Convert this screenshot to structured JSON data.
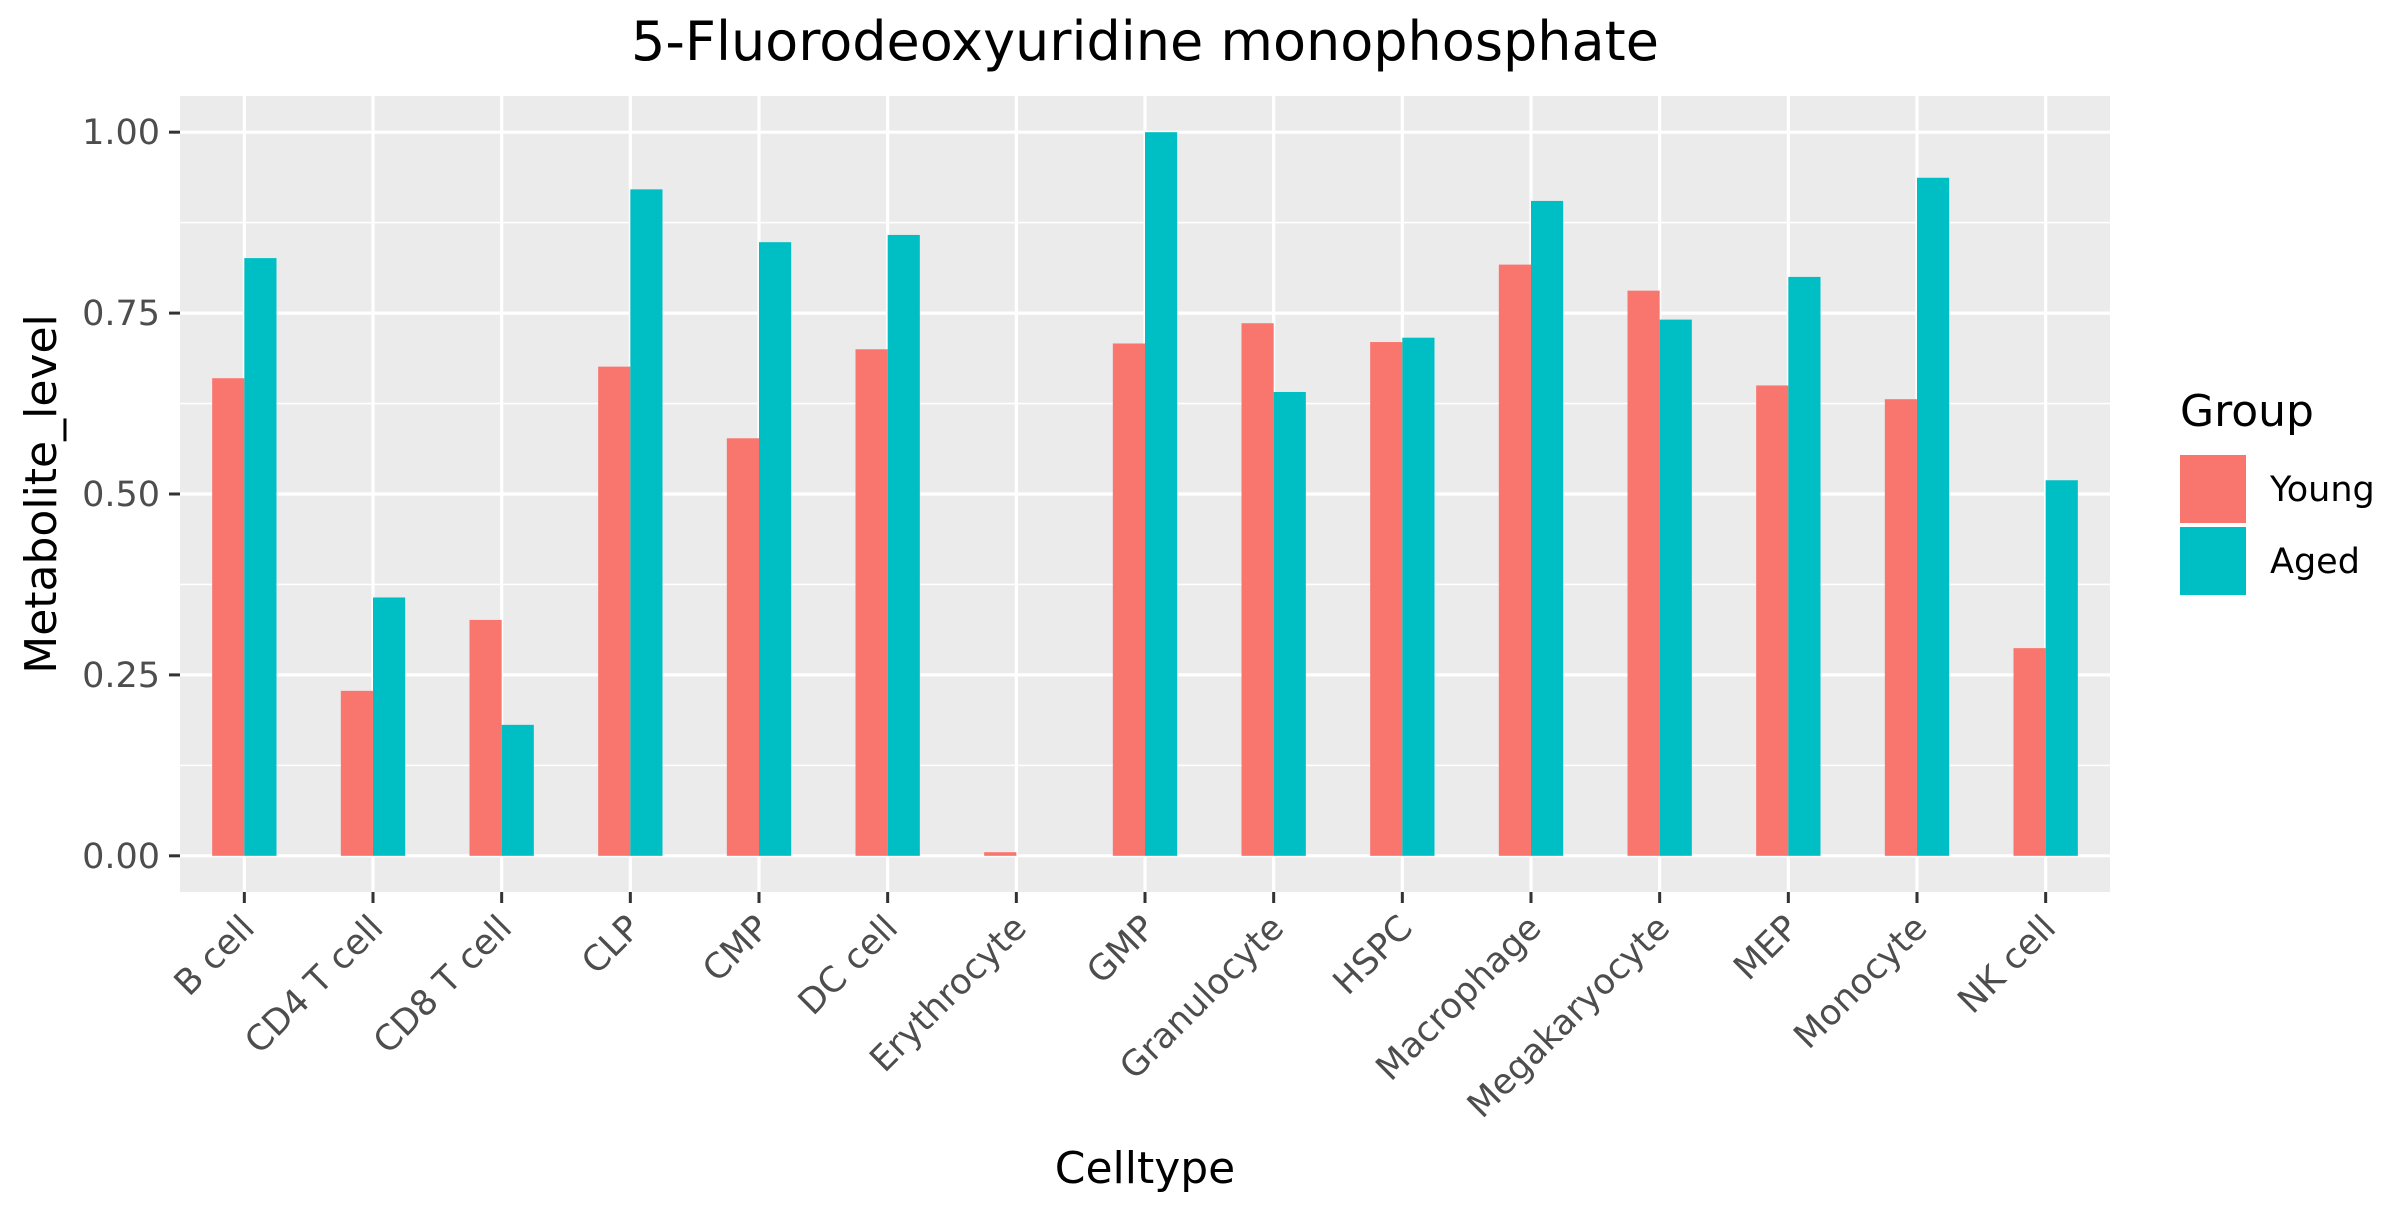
{
  "chart_data": {
    "type": "bar",
    "title": "5-Fluorodeoxyuridine monophosphate",
    "xlabel": "Celltype",
    "ylabel": "Metabolite_level",
    "categories": [
      "B cell",
      "CD4 T cell",
      "CD8 T cell",
      "CLP",
      "CMP",
      "DC cell",
      "Erythrocyte",
      "GMP",
      "Granulocyte",
      "HSPC",
      "Macrophage",
      "Megakaryocyte",
      "MEP",
      "Monocyte",
      "NK cell"
    ],
    "series": [
      {
        "name": "Young",
        "color": "#F8766D",
        "values": [
          0.66,
          0.228,
          0.326,
          0.676,
          0.577,
          0.7,
          0.005,
          0.708,
          0.736,
          0.71,
          0.817,
          0.781,
          0.65,
          0.631,
          0.287
        ]
      },
      {
        "name": "Aged",
        "color": "#00BFC4",
        "values": [
          0.826,
          0.357,
          0.181,
          0.921,
          0.848,
          0.858,
          0.0,
          1.0,
          0.641,
          0.716,
          0.905,
          0.741,
          0.8,
          0.937,
          0.519
        ]
      }
    ],
    "ylim": [
      -0.05,
      1.05
    ],
    "yticks": [
      0.0,
      0.25,
      0.5,
      0.75,
      1.0
    ],
    "ytick_labels": [
      "0.00",
      "0.25",
      "0.50",
      "0.75",
      "1.00"
    ],
    "grid": true,
    "legend": {
      "title": "Group",
      "position": "right"
    },
    "panel_background": "#EBEBEB",
    "grid_color": "#FFFFFF"
  }
}
